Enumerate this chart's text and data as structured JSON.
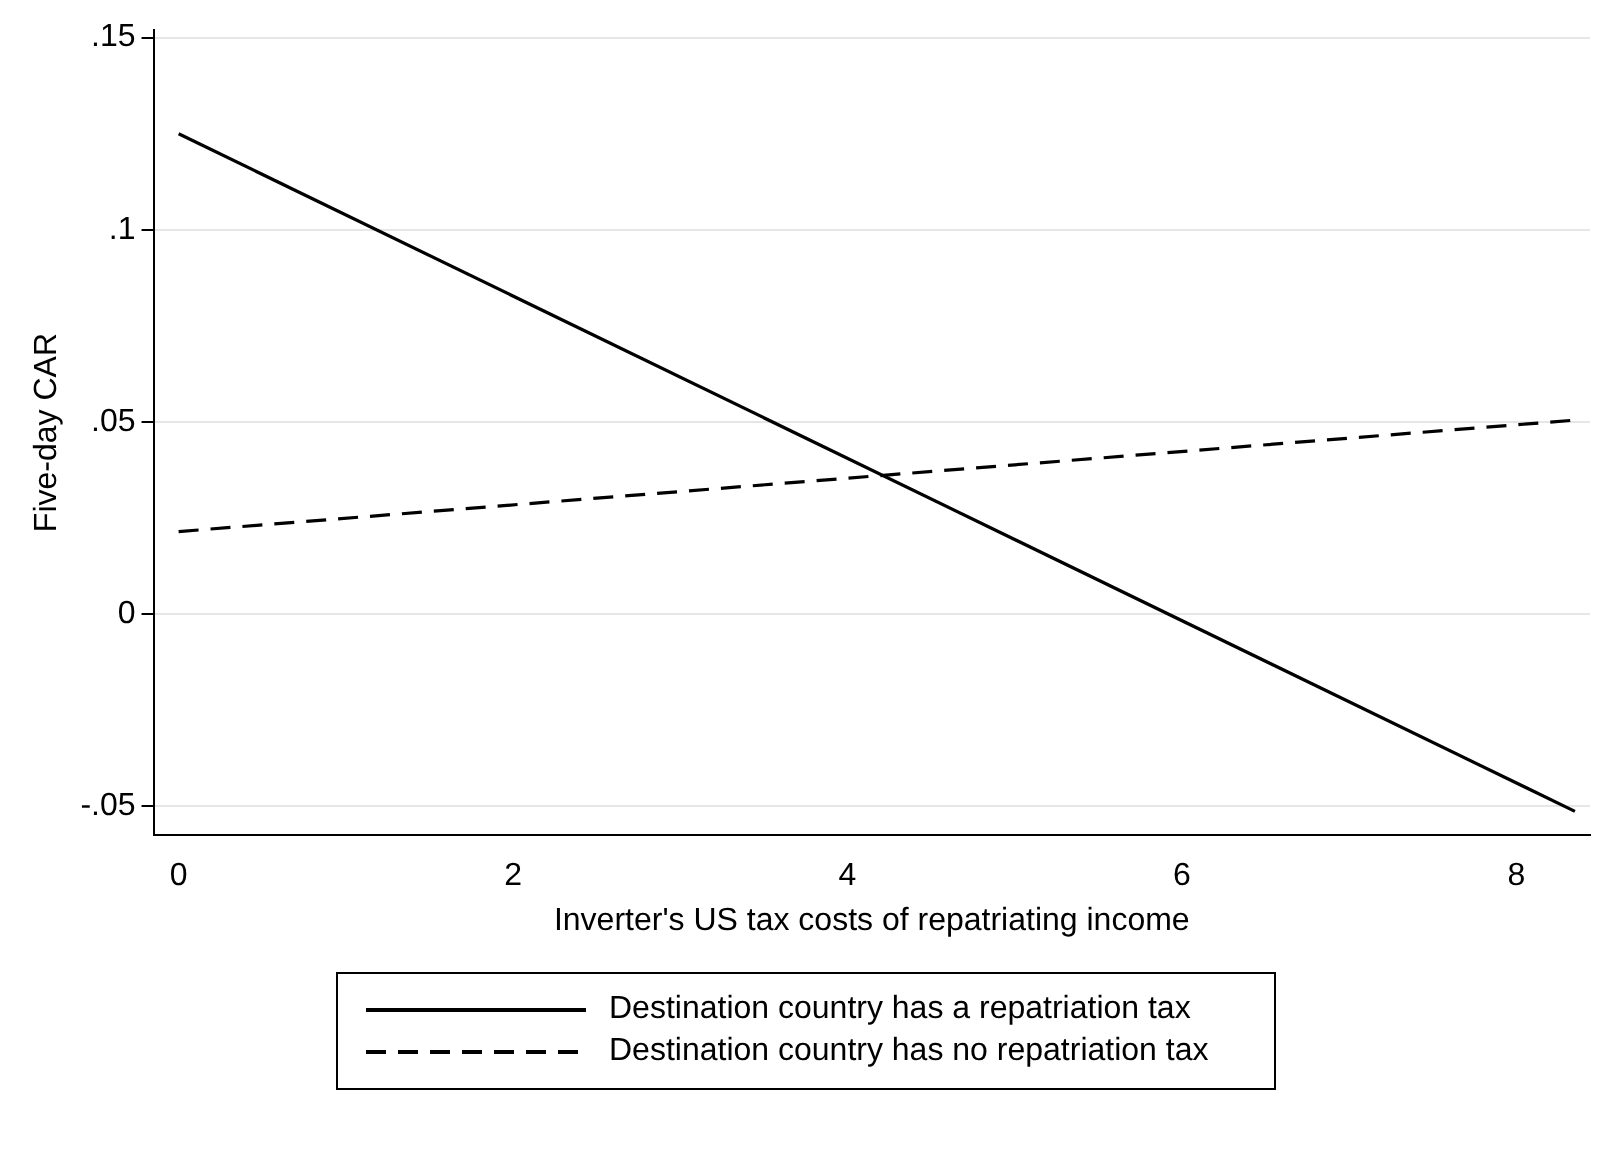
{
  "chart_data": {
    "type": "line",
    "xlabel": "Inverter's US tax costs of repatriating income",
    "ylabel": "Five-day CAR",
    "x": [
      0,
      8.35
    ],
    "series": [
      {
        "name": "Destination country has a repatriation tax",
        "color": "#000000",
        "values": [
          0.125,
          -0.0513
        ],
        "line_style": "solid"
      },
      {
        "name": "Destination country has no repatriation tax",
        "color": "#000000",
        "values": [
          0.0215,
          0.0505
        ],
        "line_style": "dashed"
      }
    ],
    "xlim": [
      -0.15,
      8.44
    ],
    "xticks": [
      0,
      2,
      4,
      6,
      8
    ],
    "ylim": [
      -0.0575,
      0.152
    ],
    "yticks": [
      {
        "value": -0.05,
        "label": "-.05"
      },
      0,
      {
        "value": 0.05,
        "label": ".05"
      },
      {
        "value": 0.1,
        "label": ".1"
      },
      {
        "value": 0.15,
        "label": ".15"
      }
    ],
    "grid": "y",
    "legend": "bottom",
    "marker": "none"
  }
}
